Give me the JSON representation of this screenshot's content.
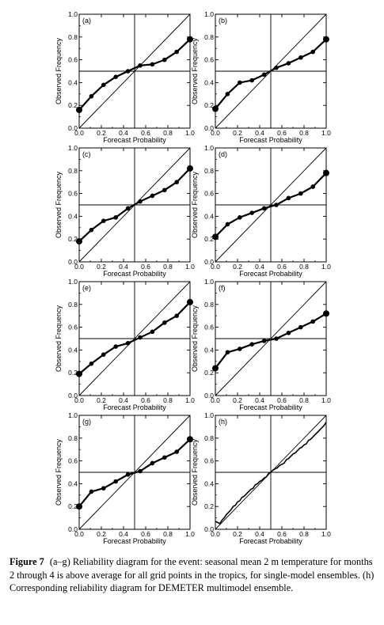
{
  "caption": {
    "label": "Figure 7",
    "text": "(a–g) Reliability diagram for the event: seasonal mean 2 m temperature for months 2 through 4 is above average for all grid points in the tropics, for single-model ensembles. (h) Corresponding reliability diagram for DEMETER multimodel ensemble."
  },
  "chart_data": [
    {
      "id": "a",
      "panel_label": "(a)",
      "type": "line",
      "xlabel": "Forecast Probability",
      "ylabel": "Observed Frequency",
      "xlim": [
        0,
        1
      ],
      "ylim": [
        0,
        1
      ],
      "xticks": [
        "0.0",
        "0.2",
        "0.4",
        "0.6",
        "0.8",
        "1.0"
      ],
      "yticks": [
        "0.0",
        "0.2",
        "0.4",
        "0.6",
        "0.8",
        "1.0"
      ],
      "x": [
        0,
        0.11,
        0.22,
        0.33,
        0.44,
        0.55,
        0.66,
        0.77,
        0.88,
        1.0
      ],
      "y": [
        0.16,
        0.28,
        0.38,
        0.45,
        0.5,
        0.55,
        0.56,
        0.6,
        0.67,
        0.78
      ]
    },
    {
      "id": "b",
      "panel_label": "(b)",
      "type": "line",
      "xlabel": "Forecast Probability",
      "ylabel": "Observed Frequency",
      "xlim": [
        0,
        1
      ],
      "ylim": [
        0,
        1
      ],
      "xticks": [
        "0.0",
        "0.2",
        "0.4",
        "0.6",
        "0.8",
        "1.0"
      ],
      "yticks": [
        "0.0",
        "0.2",
        "0.4",
        "0.6",
        "0.8",
        "1.0"
      ],
      "x": [
        0,
        0.11,
        0.22,
        0.33,
        0.44,
        0.55,
        0.66,
        0.77,
        0.88,
        1.0
      ],
      "y": [
        0.17,
        0.3,
        0.4,
        0.42,
        0.47,
        0.53,
        0.57,
        0.62,
        0.67,
        0.78
      ]
    },
    {
      "id": "c",
      "panel_label": "(c)",
      "type": "line",
      "xlabel": "Forecast Probability",
      "ylabel": "Observed Frequency",
      "xlim": [
        0,
        1
      ],
      "ylim": [
        0,
        1
      ],
      "xticks": [
        "0.0",
        "0.2",
        "0.4",
        "0.6",
        "0.8",
        "1.0"
      ],
      "yticks": [
        "0.0",
        "0.2",
        "0.4",
        "0.6",
        "0.8",
        "1.0"
      ],
      "x": [
        0,
        0.11,
        0.22,
        0.33,
        0.44,
        0.55,
        0.66,
        0.77,
        0.88,
        1.0
      ],
      "y": [
        0.18,
        0.28,
        0.36,
        0.39,
        0.47,
        0.53,
        0.58,
        0.63,
        0.7,
        0.82
      ]
    },
    {
      "id": "d",
      "panel_label": "(d)",
      "type": "line",
      "xlabel": "Forecast Probability",
      "ylabel": "Observed Frequency",
      "xlim": [
        0,
        1
      ],
      "ylim": [
        0,
        1
      ],
      "xticks": [
        "0.0",
        "0.2",
        "0.4",
        "0.6",
        "0.8",
        "1.0"
      ],
      "yticks": [
        "0.0",
        "0.2",
        "0.4",
        "0.6",
        "0.8",
        "1.0"
      ],
      "x": [
        0,
        0.11,
        0.22,
        0.33,
        0.44,
        0.55,
        0.66,
        0.77,
        0.88,
        1.0
      ],
      "y": [
        0.22,
        0.33,
        0.39,
        0.43,
        0.47,
        0.5,
        0.56,
        0.6,
        0.66,
        0.78
      ]
    },
    {
      "id": "e",
      "panel_label": "(e)",
      "type": "line",
      "xlabel": "Forecast Probability",
      "ylabel": "Observed Frequency",
      "xlim": [
        0,
        1
      ],
      "ylim": [
        0,
        1
      ],
      "xticks": [
        "0.0",
        "0.2",
        "0.4",
        "0.6",
        "0.8",
        "1.0"
      ],
      "yticks": [
        "0.0",
        "0.2",
        "0.4",
        "0.6",
        "0.8",
        "1.0"
      ],
      "x": [
        0,
        0.11,
        0.22,
        0.33,
        0.44,
        0.55,
        0.66,
        0.77,
        0.88,
        1.0
      ],
      "y": [
        0.19,
        0.28,
        0.36,
        0.43,
        0.46,
        0.51,
        0.56,
        0.64,
        0.7,
        0.82
      ]
    },
    {
      "id": "f",
      "panel_label": "(f)",
      "type": "line",
      "xlabel": "Forecast Probability",
      "ylabel": "Observed Frequency",
      "xlim": [
        0,
        1
      ],
      "ylim": [
        0,
        1
      ],
      "xticks": [
        "0.0",
        "0.2",
        "0.4",
        "0.6",
        "0.8",
        "1.0"
      ],
      "yticks": [
        "0.0",
        "0.2",
        "0.4",
        "0.6",
        "0.8",
        "1.0"
      ],
      "x": [
        0,
        0.11,
        0.22,
        0.33,
        0.44,
        0.55,
        0.66,
        0.77,
        0.88,
        1.0
      ],
      "y": [
        0.24,
        0.38,
        0.41,
        0.45,
        0.48,
        0.5,
        0.55,
        0.6,
        0.65,
        0.72
      ]
    },
    {
      "id": "g",
      "panel_label": "(g)",
      "type": "line",
      "xlabel": "Forecast Probability",
      "ylabel": "Observed Frequency",
      "xlim": [
        0,
        1
      ],
      "ylim": [
        0,
        1
      ],
      "xticks": [
        "0.0",
        "0.2",
        "0.4",
        "0.6",
        "0.8",
        "1.0"
      ],
      "yticks": [
        "0.0",
        "0.2",
        "0.4",
        "0.6",
        "0.8",
        "1.0"
      ],
      "x": [
        0,
        0.11,
        0.22,
        0.33,
        0.44,
        0.55,
        0.66,
        0.77,
        0.88,
        1.0
      ],
      "y": [
        0.2,
        0.33,
        0.36,
        0.42,
        0.48,
        0.51,
        0.58,
        0.63,
        0.68,
        0.79
      ]
    },
    {
      "id": "h",
      "panel_label": "(h)",
      "type": "line",
      "xlabel": "Forecast Probability",
      "ylabel": "Observed Frequency",
      "xlim": [
        0,
        1
      ],
      "ylim": [
        0,
        1
      ],
      "xticks": [
        "0.0",
        "0.2",
        "0.4",
        "0.6",
        "0.8",
        "1.0"
      ],
      "yticks": [
        "0.0",
        "0.2",
        "0.4",
        "0.6",
        "0.8",
        "1.0"
      ],
      "markers": false,
      "x": [
        0,
        0.02,
        0.04,
        0.06,
        0.08,
        0.1,
        0.12,
        0.14,
        0.16,
        0.18,
        0.2,
        0.22,
        0.24,
        0.26,
        0.28,
        0.3,
        0.32,
        0.34,
        0.36,
        0.38,
        0.4,
        0.42,
        0.44,
        0.46,
        0.48,
        0.5,
        0.52,
        0.54,
        0.56,
        0.58,
        0.6,
        0.62,
        0.64,
        0.66,
        0.68,
        0.7,
        0.72,
        0.74,
        0.76,
        0.78,
        0.8,
        0.82,
        0.84,
        0.86,
        0.88,
        0.9,
        0.92,
        0.94,
        0.96,
        0.98,
        1.0
      ],
      "y": [
        0.07,
        0.06,
        0.05,
        0.08,
        0.1,
        0.13,
        0.15,
        0.17,
        0.2,
        0.21,
        0.24,
        0.25,
        0.28,
        0.29,
        0.31,
        0.33,
        0.35,
        0.36,
        0.39,
        0.4,
        0.42,
        0.43,
        0.45,
        0.46,
        0.49,
        0.5,
        0.52,
        0.53,
        0.54,
        0.56,
        0.57,
        0.58,
        0.61,
        0.62,
        0.64,
        0.66,
        0.67,
        0.69,
        0.71,
        0.72,
        0.74,
        0.75,
        0.78,
        0.79,
        0.81,
        0.83,
        0.85,
        0.87,
        0.89,
        0.91,
        0.94
      ]
    }
  ]
}
